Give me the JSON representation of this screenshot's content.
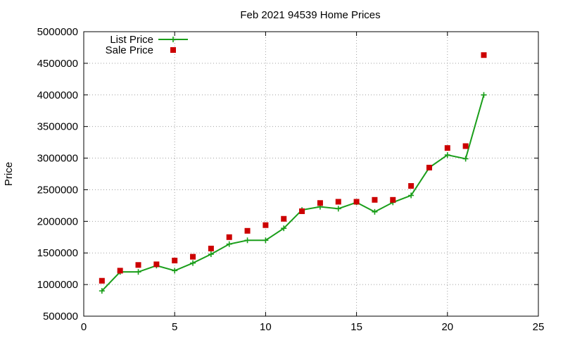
{
  "chart_data": {
    "type": "line",
    "title": "Feb 2021 94539 Home Prices",
    "xlabel": "",
    "ylabel": "Price",
    "xlim": [
      0,
      25
    ],
    "ylim": [
      500000,
      5000000
    ],
    "x_ticks": [
      0,
      5,
      10,
      15,
      20,
      25
    ],
    "y_ticks": [
      500000,
      1000000,
      1500000,
      2000000,
      2500000,
      3000000,
      3500000,
      4000000,
      4500000,
      5000000
    ],
    "grid": true,
    "legend_position": "top-left",
    "series": [
      {
        "name": "List Price",
        "style": "line+cross",
        "color": "#1a9e1a",
        "points": [
          [
            1,
            900000
          ],
          [
            2,
            1200000
          ],
          [
            3,
            1200000
          ],
          [
            4,
            1300000
          ],
          [
            5,
            1220000
          ],
          [
            6,
            1340000
          ],
          [
            7,
            1480000
          ],
          [
            8,
            1640000
          ],
          [
            9,
            1700000
          ],
          [
            10,
            1700000
          ],
          [
            11,
            1890000
          ],
          [
            12,
            2180000
          ],
          [
            13,
            2230000
          ],
          [
            14,
            2200000
          ],
          [
            15,
            2300000
          ],
          [
            16,
            2150000
          ],
          [
            17,
            2300000
          ],
          [
            18,
            2410000
          ],
          [
            19,
            2850000
          ],
          [
            20,
            3050000
          ],
          [
            21,
            2990000
          ],
          [
            22,
            4000000
          ]
        ]
      },
      {
        "name": "Sale Price",
        "style": "square",
        "color": "#cc0000",
        "points": [
          [
            1,
            1060000
          ],
          [
            2,
            1220000
          ],
          [
            3,
            1310000
          ],
          [
            4,
            1320000
          ],
          [
            5,
            1380000
          ],
          [
            6,
            1440000
          ],
          [
            7,
            1570000
          ],
          [
            8,
            1750000
          ],
          [
            9,
            1850000
          ],
          [
            10,
            1940000
          ],
          [
            11,
            2040000
          ],
          [
            12,
            2160000
          ],
          [
            13,
            2290000
          ],
          [
            14,
            2310000
          ],
          [
            15,
            2310000
          ],
          [
            16,
            2340000
          ],
          [
            17,
            2340000
          ],
          [
            18,
            2560000
          ],
          [
            19,
            2850000
          ],
          [
            20,
            3160000
          ],
          [
            21,
            3190000
          ],
          [
            22,
            4630000
          ]
        ]
      }
    ]
  }
}
